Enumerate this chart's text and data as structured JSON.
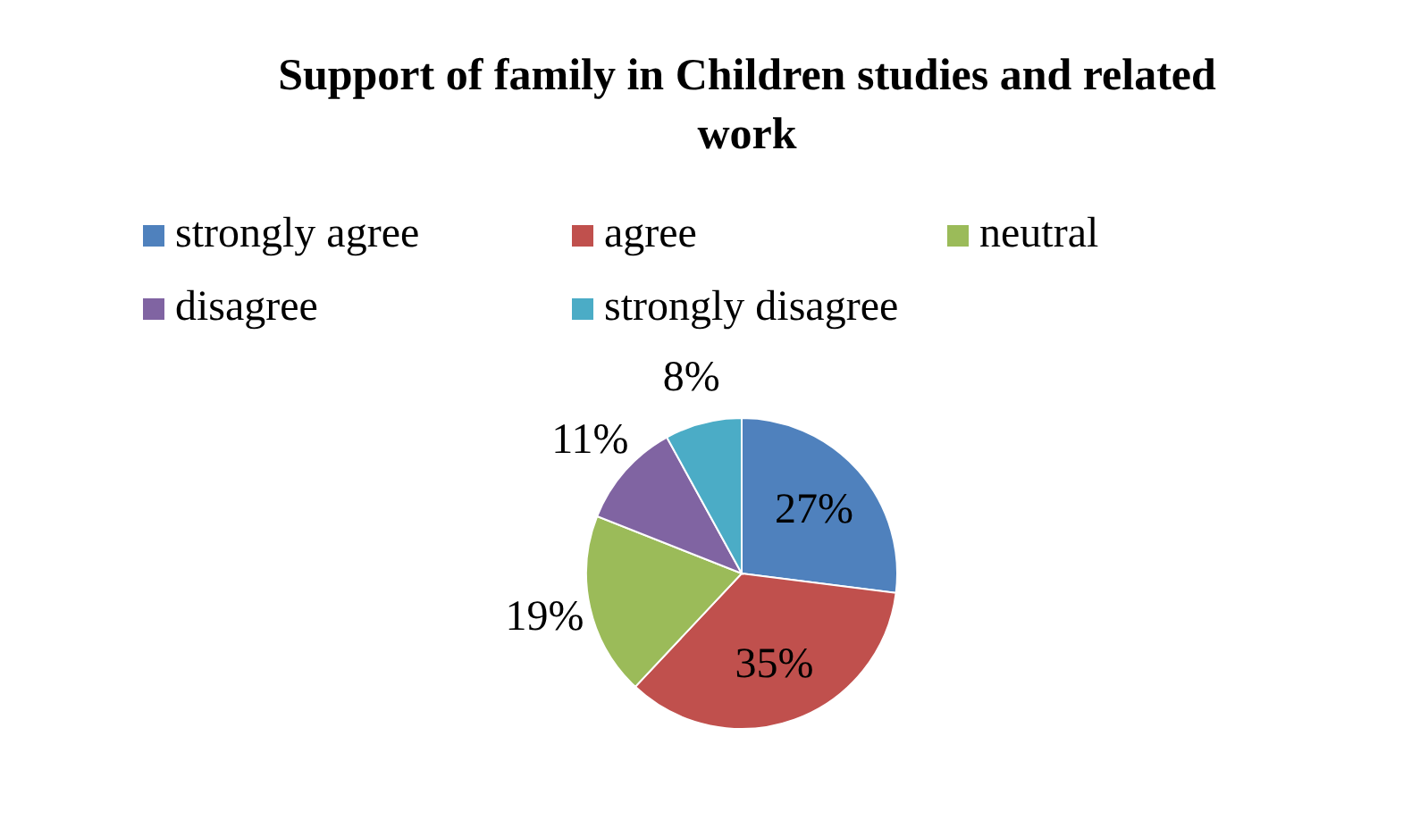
{
  "chart_data": {
    "type": "pie",
    "title": "Support of family in Children studies and related work",
    "categories": [
      "strongly agree",
      "agree",
      "neutral",
      "disagree",
      "strongly disagree"
    ],
    "values": [
      27,
      35,
      19,
      11,
      8
    ],
    "colors": [
      "#4f81bd",
      "#c0504d",
      "#9bbb59",
      "#8064a2",
      "#4bacc6"
    ],
    "legend": "top",
    "value_labels": [
      "27%",
      "35%",
      "19%",
      "11%",
      "8%"
    ]
  }
}
